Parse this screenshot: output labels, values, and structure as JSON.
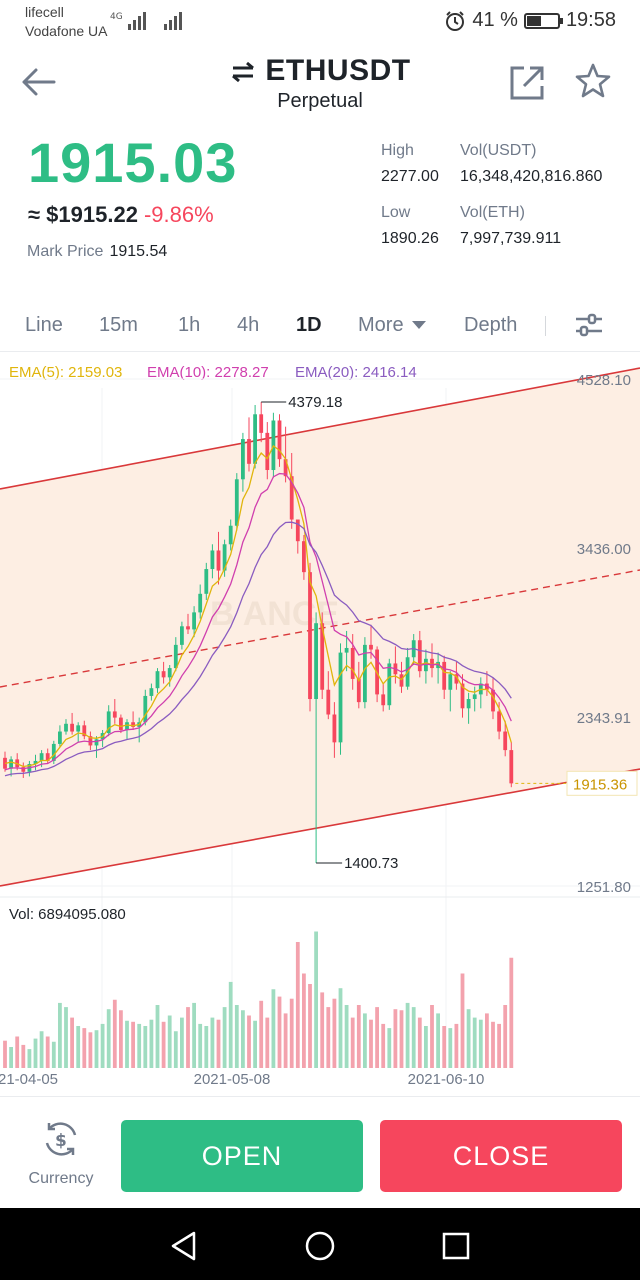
{
  "status_bar": {
    "carrier1": "lifecell",
    "carrier2": "Vodafone UA",
    "network": "4G",
    "battery_text": "41 %",
    "battery_level": 0.41,
    "time": "19:58"
  },
  "header": {
    "symbol": "ETHUSDT",
    "subtitle": "Perpetual"
  },
  "price": {
    "last": "1915.03",
    "usd": "≈ $1915.22",
    "change": "-9.86%",
    "mark_label": "Mark Price",
    "mark_value": "1915.54",
    "high_label": "High",
    "high_value": "2277.00",
    "low_label": "Low",
    "low_value": "1890.26",
    "vol_usdt_label": "Vol(USDT)",
    "vol_usdt_value": "16,348,420,816.860",
    "vol_eth_label": "Vol(ETH)",
    "vol_eth_value": "7,997,739.911"
  },
  "tabs": {
    "line": "Line",
    "m15": "15m",
    "h1": "1h",
    "h4": "4h",
    "d1": "1D",
    "more": "More",
    "depth": "Depth",
    "active": "1D"
  },
  "indicators": {
    "ema5": "EMA(5): 2159.03",
    "ema10": "EMA(10): 2278.27",
    "ema20": "EMA(20): 2416.14",
    "vol": "Vol: 6894095.080"
  },
  "colors": {
    "up": "#2ebd85",
    "down": "#f6465d",
    "vol_up": "#9fdcc0",
    "vol_down": "#f3a2ad",
    "ema5": "#e0b50c",
    "ema10": "#d03fae",
    "ema20": "#8a5cc0",
    "channel": "#d9383a",
    "channel_fill": "#fdeee3"
  },
  "chart_data": {
    "type": "candlestick",
    "price_ticks": [
      "4528.10",
      "3436.00",
      "2343.91",
      "1251.80"
    ],
    "price_tick_values": [
      4528.1,
      3436.0,
      2343.91,
      1251.8
    ],
    "current_price_label": "1915.36",
    "high_marker": "4379.18",
    "low_marker": "1400.73",
    "x_tick_labels": [
      "21-04-05",
      "2021-05-08",
      "2021-06-10"
    ],
    "candles_ohlc": [
      [
        2080,
        2120,
        1990,
        2010
      ],
      [
        2010,
        2090,
        1960,
        2070
      ],
      [
        2070,
        2110,
        2000,
        2020
      ],
      [
        2020,
        2050,
        1950,
        1990
      ],
      [
        1990,
        2060,
        1960,
        2040
      ],
      [
        2040,
        2100,
        2000,
        2060
      ],
      [
        2060,
        2130,
        2020,
        2110
      ],
      [
        2110,
        2140,
        2040,
        2060
      ],
      [
        2060,
        2190,
        2040,
        2170
      ],
      [
        2170,
        2290,
        2150,
        2250
      ],
      [
        2250,
        2330,
        2230,
        2300
      ],
      [
        2300,
        2370,
        2230,
        2250
      ],
      [
        2250,
        2310,
        2180,
        2290
      ],
      [
        2290,
        2320,
        2200,
        2220
      ],
      [
        2220,
        2250,
        2130,
        2160
      ],
      [
        2160,
        2220,
        2080,
        2200
      ],
      [
        2200,
        2260,
        2150,
        2240
      ],
      [
        2240,
        2420,
        2220,
        2380
      ],
      [
        2380,
        2460,
        2300,
        2340
      ],
      [
        2340,
        2360,
        2240,
        2260
      ],
      [
        2260,
        2330,
        2200,
        2310
      ],
      [
        2310,
        2380,
        2260,
        2280
      ],
      [
        2280,
        2340,
        2180,
        2310
      ],
      [
        2310,
        2520,
        2290,
        2480
      ],
      [
        2480,
        2560,
        2450,
        2530
      ],
      [
        2530,
        2660,
        2500,
        2640
      ],
      [
        2640,
        2700,
        2560,
        2600
      ],
      [
        2600,
        2680,
        2540,
        2660
      ],
      [
        2660,
        2860,
        2640,
        2810
      ],
      [
        2810,
        2960,
        2780,
        2930
      ],
      [
        2930,
        3010,
        2880,
        2910
      ],
      [
        2910,
        3060,
        2860,
        3020
      ],
      [
        3020,
        3200,
        2980,
        3140
      ],
      [
        3140,
        3340,
        3100,
        3300
      ],
      [
        3300,
        3460,
        3240,
        3420
      ],
      [
        3420,
        3540,
        3200,
        3290
      ],
      [
        3290,
        3490,
        3250,
        3460
      ],
      [
        3460,
        3620,
        3420,
        3580
      ],
      [
        3580,
        3920,
        3550,
        3880
      ],
      [
        3880,
        4180,
        3800,
        4140
      ],
      [
        4140,
        4280,
        3930,
        3980
      ],
      [
        3980,
        4360,
        3950,
        4300
      ],
      [
        4300,
        4379,
        4120,
        4180
      ],
      [
        4180,
        4250,
        3880,
        3940
      ],
      [
        3940,
        4310,
        3890,
        4260
      ],
      [
        4260,
        4300,
        3960,
        4010
      ],
      [
        4010,
        4220,
        3860,
        3900
      ],
      [
        3900,
        4050,
        3560,
        3620
      ],
      [
        3620,
        3580,
        3400,
        3480
      ],
      [
        3480,
        3520,
        3230,
        3280
      ],
      [
        3280,
        3340,
        2380,
        2460
      ],
      [
        2460,
        3020,
        1400.73,
        2950
      ],
      [
        2950,
        3020,
        2460,
        2520
      ],
      [
        2520,
        2640,
        2330,
        2360
      ],
      [
        2360,
        2440,
        2080,
        2180
      ],
      [
        2180,
        2820,
        2100,
        2760
      ],
      [
        2760,
        2900,
        2640,
        2790
      ],
      [
        2790,
        2880,
        2520,
        2590
      ],
      [
        2590,
        2700,
        2400,
        2440
      ],
      [
        2440,
        2860,
        2400,
        2810
      ],
      [
        2810,
        2940,
        2720,
        2780
      ],
      [
        2780,
        2800,
        2440,
        2490
      ],
      [
        2490,
        2560,
        2380,
        2420
      ],
      [
        2420,
        2720,
        2390,
        2690
      ],
      [
        2690,
        2800,
        2560,
        2620
      ],
      [
        2620,
        2700,
        2500,
        2540
      ],
      [
        2540,
        2790,
        2520,
        2730
      ],
      [
        2730,
        2880,
        2680,
        2840
      ],
      [
        2840,
        2900,
        2600,
        2640
      ],
      [
        2640,
        2780,
        2560,
        2720
      ],
      [
        2720,
        2820,
        2600,
        2660
      ],
      [
        2660,
        2760,
        2560,
        2700
      ],
      [
        2700,
        2740,
        2460,
        2520
      ],
      [
        2520,
        2640,
        2380,
        2620
      ],
      [
        2620,
        2700,
        2520,
        2560
      ],
      [
        2560,
        2620,
        2340,
        2400
      ],
      [
        2400,
        2500,
        2300,
        2460
      ],
      [
        2460,
        2540,
        2380,
        2490
      ],
      [
        2490,
        2600,
        2400,
        2560
      ],
      [
        2560,
        2640,
        2480,
        2520
      ],
      [
        2520,
        2600,
        2330,
        2380
      ],
      [
        2380,
        2440,
        2200,
        2250
      ],
      [
        2250,
        2320,
        2090,
        2130
      ],
      [
        2130,
        2180,
        1890.26,
        1915.03
      ]
    ],
    "volume": [
      26,
      20,
      30,
      22,
      18,
      28,
      35,
      30,
      25,
      62,
      58,
      48,
      40,
      38,
      34,
      36,
      42,
      56,
      65,
      55,
      45,
      44,
      42,
      40,
      46,
      60,
      44,
      50,
      35,
      48,
      58,
      62,
      42,
      40,
      48,
      46,
      58,
      82,
      60,
      55,
      50,
      45,
      64,
      48,
      75,
      68,
      52,
      66,
      120,
      90,
      80,
      130,
      72,
      58,
      66,
      76,
      60,
      48,
      60,
      52,
      46,
      58,
      42,
      38,
      56,
      55,
      62,
      58,
      48,
      40,
      60,
      52,
      40,
      38,
      42,
      90,
      56,
      48,
      46,
      52,
      44,
      42,
      60,
      105
    ]
  },
  "bottom": {
    "currency_label": "Currency",
    "open_label": "OPEN",
    "close_label": "CLOSE"
  }
}
